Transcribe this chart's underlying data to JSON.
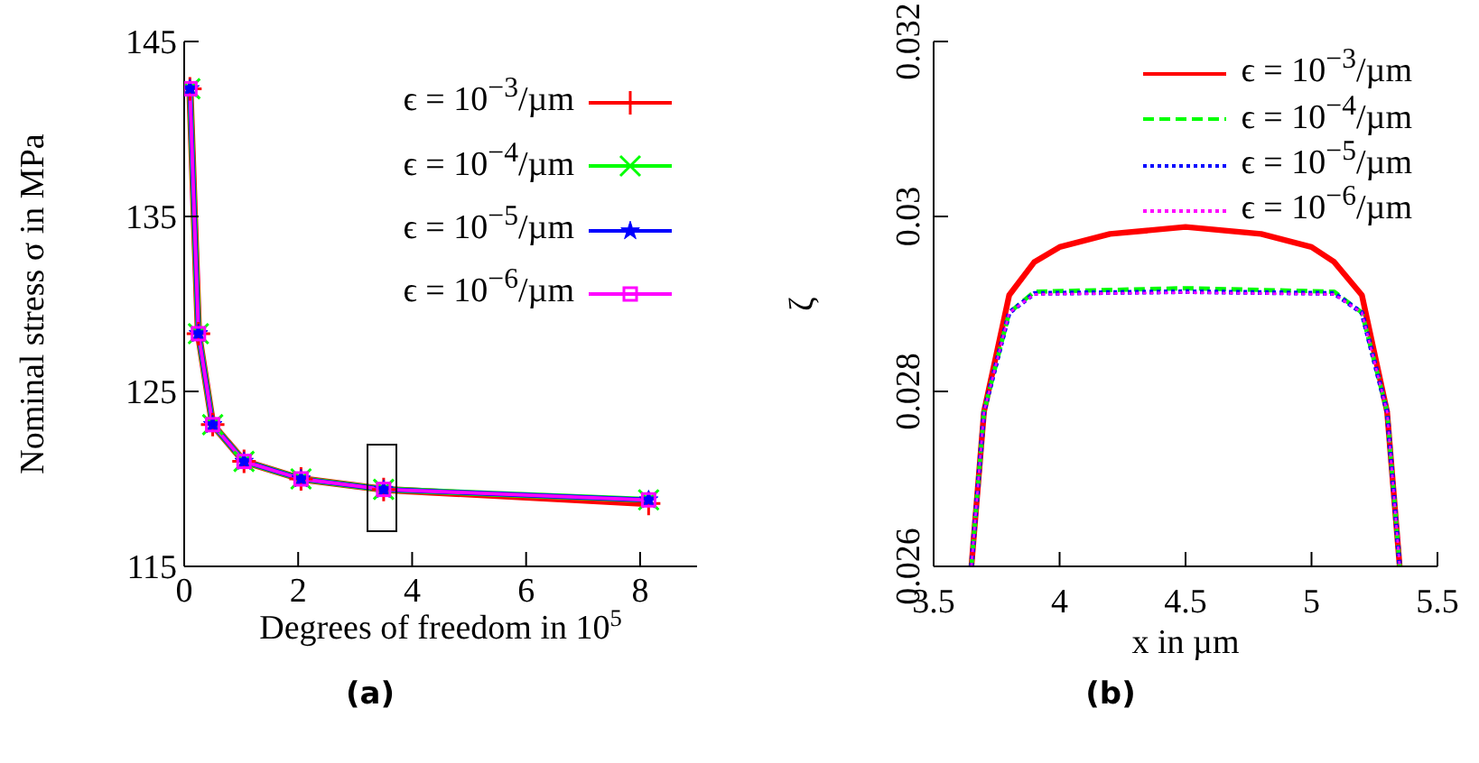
{
  "chart_data": [
    {
      "type": "line",
      "xlabel": "Degrees of freedom in 10$^{5}$",
      "ylabel": "Nominal stress σ in MPa",
      "annotations": [
        "(a)"
      ],
      "x": [
        0.1,
        0.25,
        0.5,
        1.05,
        2.05,
        3.5,
        8.15
      ],
      "xlim": [
        0,
        9
      ],
      "xticks": [
        0,
        2,
        4,
        6,
        8
      ],
      "ylim": [
        115,
        145
      ],
      "yticks": [
        115,
        125,
        135,
        145
      ],
      "grid": false,
      "legend": "top right",
      "series": [
        {
          "name": "ϵ = 10$^{−3}$/µm",
          "color": "#ff0000",
          "marker": "cross",
          "values": [
            142.3,
            128.3,
            123.1,
            121,
            120,
            119.4,
            118.6
          ]
        },
        {
          "name": "ϵ = 10$^{−4}$/µm",
          "color": "#00ff00",
          "marker": "x",
          "values": [
            142.3,
            128.3,
            123.1,
            121,
            120,
            119.4,
            118.8
          ]
        },
        {
          "name": "ϵ = 10$^{−5}$/µm",
          "color": "#0000ff",
          "marker": "star",
          "values": [
            142.3,
            128.3,
            123.1,
            121,
            120,
            119.4,
            118.8
          ]
        },
        {
          "name": "ϵ = 10$^{−6}$/µm",
          "color": "#ff00ff",
          "marker": "square",
          "values": [
            142.3,
            128.3,
            123.1,
            121,
            120,
            119.4,
            118.8
          ]
        }
      ]
    },
    {
      "type": "line",
      "xlabel": "x in µm",
      "ylabel": "ζ",
      "annotations": [
        "(b)"
      ],
      "xlim": [
        3.5,
        5.5
      ],
      "xticks": [
        3.5,
        4,
        4.5,
        5,
        5.5
      ],
      "ylim": [
        0.026,
        0.032
      ],
      "yticks": [
        0.026,
        0.028,
        0.03,
        0.032
      ],
      "grid": false,
      "legend": "top right",
      "marker": "none",
      "series": [
        {
          "name": "ϵ = 10$^{−3}$/µm",
          "color": "#ff0000",
          "line_style": "solid",
          "x": [
            3.65,
            3.7,
            3.8,
            3.9,
            4.0,
            4.2,
            4.5,
            4.8,
            5.0,
            5.09,
            5.2,
            5.3,
            5.35
          ],
          "values": [
            0.026,
            0.02777,
            0.0291,
            0.02948,
            0.02965,
            0.0298,
            0.02988,
            0.0298,
            0.02965,
            0.02948,
            0.0291,
            0.02777,
            0.026
          ]
        },
        {
          "name": "ϵ = 10$^{−4}$/µm",
          "color": "#00ff00",
          "line_style": "dashed",
          "x": [
            3.65,
            3.7,
            3.8,
            3.9,
            4.5,
            5.09,
            5.2,
            5.3,
            5.35
          ],
          "values": [
            0.026,
            0.02777,
            0.0289,
            0.02914,
            0.02918,
            0.02914,
            0.0289,
            0.02777,
            0.026
          ]
        },
        {
          "name": "ϵ = 10$^{−5}$/µm",
          "color": "#0000ff",
          "line_style": "dotted",
          "x": [
            3.65,
            3.7,
            3.8,
            3.9,
            4.5,
            5.09,
            5.2,
            5.3,
            5.35
          ],
          "values": [
            0.026,
            0.02777,
            0.0289,
            0.02912,
            0.02914,
            0.02912,
            0.0289,
            0.02777,
            0.026
          ]
        },
        {
          "name": "ϵ = 10$^{−6}$/µm",
          "color": "#ff00ff",
          "line_style": "dotted",
          "x": [
            3.65,
            3.7,
            3.8,
            3.9,
            4.5,
            5.09,
            5.2,
            5.3,
            5.35
          ],
          "values": [
            0.026,
            0.02777,
            0.0289,
            0.02911,
            0.02913,
            0.02911,
            0.0289,
            0.02777,
            0.026
          ]
        }
      ]
    }
  ]
}
